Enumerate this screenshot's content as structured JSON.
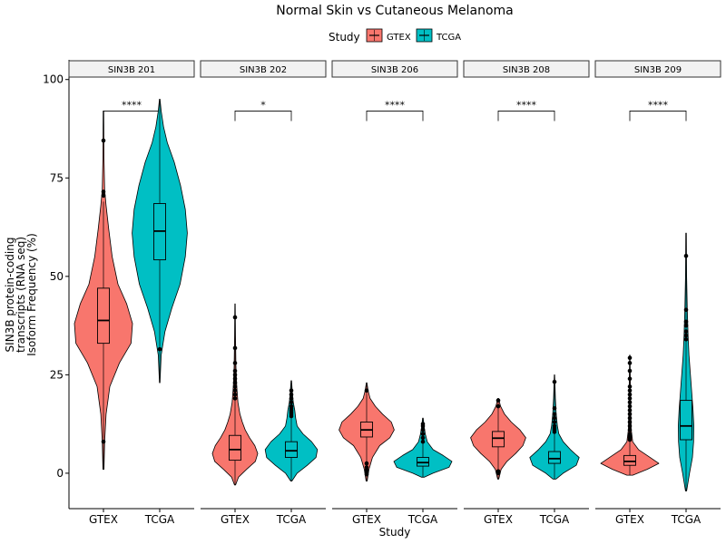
{
  "chart_data": {
    "type": "violin",
    "title": "Normal Skin vs Cutaneous Melanoma",
    "xlabel": "Study",
    "ylabel_lines": [
      "SIN3B protein-coding",
      "transcripts (RNA seq)",
      "Isoform Frequency (%)"
    ],
    "ylim": [
      -9,
      105
    ],
    "yticks": [
      0,
      25,
      50,
      75,
      100
    ],
    "legend": {
      "title": "Study",
      "position": "top",
      "entries": [
        {
          "name": "GTEX",
          "color": "#F8766D"
        },
        {
          "name": "TCGA",
          "color": "#00BFC4"
        }
      ]
    },
    "categories": [
      "GTEX",
      "TCGA"
    ],
    "panels": [
      {
        "label": "SIN3B 201",
        "significance": "****",
        "bracket_y": 92,
        "groups": [
          {
            "study": "GTEX",
            "min": 1,
            "q1": 33,
            "median": 38.8,
            "q3": 47,
            "max": 69,
            "wl": 12,
            "wh": 69,
            "outliers": [
              8,
              70.5,
              71.5,
              84.5
            ],
            "density": [
              [
                1,
                0.02
              ],
              [
                8,
                0.04
              ],
              [
                15,
                0.09
              ],
              [
                22,
                0.22
              ],
              [
                28,
                0.55
              ],
              [
                33,
                0.95
              ],
              [
                38,
                1.0
              ],
              [
                43,
                0.8
              ],
              [
                48,
                0.5
              ],
              [
                55,
                0.3
              ],
              [
                62,
                0.18
              ],
              [
                68,
                0.09
              ],
              [
                72,
                0.04
              ],
              [
                80,
                0.02
              ],
              [
                92,
                0.01
              ]
            ]
          },
          {
            "study": "TCGA",
            "min": 23,
            "q1": 54.2,
            "median": 61.5,
            "q3": 68.5,
            "max": 95,
            "wl": 33,
            "wh": 88,
            "outliers": [
              31.5
            ],
            "density": [
              [
                23,
                0.01
              ],
              [
                30,
                0.05
              ],
              [
                36,
                0.18
              ],
              [
                42,
                0.42
              ],
              [
                48,
                0.7
              ],
              [
                55,
                0.88
              ],
              [
                61,
                0.95
              ],
              [
                67,
                0.88
              ],
              [
                73,
                0.72
              ],
              [
                79,
                0.5
              ],
              [
                84,
                0.26
              ],
              [
                88,
                0.13
              ],
              [
                92,
                0.05
              ],
              [
                95,
                0.01
              ]
            ]
          }
        ]
      },
      {
        "label": "SIN3B 202",
        "significance": "*",
        "bracket_y": 92,
        "groups": [
          {
            "study": "GTEX",
            "min": -3,
            "q1": 3.3,
            "median": 6,
            "q3": 9.6,
            "max": 43,
            "wl": -1,
            "wh": 19,
            "outliers": [
              19,
              20,
              21,
              22,
              23,
              24,
              25,
              26,
              28,
              31.8,
              39.6
            ],
            "density": [
              [
                -3,
                0.02
              ],
              [
                -1,
                0.12
              ],
              [
                1,
                0.4
              ],
              [
                3,
                0.7
              ],
              [
                5,
                0.78
              ],
              [
                7,
                0.68
              ],
              [
                9,
                0.5
              ],
              [
                11,
                0.35
              ],
              [
                13,
                0.25
              ],
              [
                15,
                0.17
              ],
              [
                18,
                0.1
              ],
              [
                22,
                0.06
              ],
              [
                27,
                0.03
              ],
              [
                35,
                0.015
              ],
              [
                43,
                0.005
              ]
            ]
          },
          {
            "study": "TCGA",
            "min": -2,
            "q1": 4,
            "median": 5.7,
            "q3": 8,
            "max": 23.5,
            "wl": 0,
            "wh": 14,
            "outliers": [
              14.5,
              15,
              15.5,
              16,
              16.5,
              17,
              18,
              19,
              20,
              21
            ],
            "density": [
              [
                -2,
                0.02
              ],
              [
                0,
                0.2
              ],
              [
                2,
                0.55
              ],
              [
                4,
                0.85
              ],
              [
                6,
                0.9
              ],
              [
                8,
                0.7
              ],
              [
                10,
                0.4
              ],
              [
                12,
                0.2
              ],
              [
                14,
                0.15
              ],
              [
                16,
                0.12
              ],
              [
                18,
                0.07
              ],
              [
                20,
                0.04
              ],
              [
                23.5,
                0.01
              ]
            ]
          }
        ]
      },
      {
        "label": "SIN3B 206",
        "significance": "****",
        "bracket_y": 92,
        "groups": [
          {
            "study": "GTEX",
            "min": -2,
            "q1": 9.2,
            "median": 11,
            "q3": 13,
            "max": 23,
            "wl": 3.5,
            "wh": 17.5,
            "outliers": [
              -0.3,
              0.2,
              0.8,
              1.5,
              2.5,
              21
            ],
            "density": [
              [
                -2,
                0.02
              ],
              [
                1,
                0.08
              ],
              [
                4,
                0.2
              ],
              [
                7,
                0.45
              ],
              [
                9,
                0.8
              ],
              [
                11,
                0.95
              ],
              [
                13,
                0.85
              ],
              [
                15,
                0.55
              ],
              [
                17,
                0.3
              ],
              [
                19,
                0.12
              ],
              [
                21,
                0.05
              ],
              [
                23,
                0.01
              ]
            ]
          },
          {
            "study": "TCGA",
            "min": -1,
            "q1": 1.8,
            "median": 2.7,
            "q3": 4,
            "max": 14,
            "wl": -0.5,
            "wh": 7.5,
            "outliers": [
              8,
              9,
              10,
              11,
              12,
              12.5
            ],
            "density": [
              [
                -1,
                0.05
              ],
              [
                0,
                0.35
              ],
              [
                1.5,
                0.9
              ],
              [
                3,
                1.0
              ],
              [
                4.5,
                0.7
              ],
              [
                6,
                0.35
              ],
              [
                8,
                0.15
              ],
              [
                10,
                0.08
              ],
              [
                12,
                0.04
              ],
              [
                14,
                0.01
              ]
            ]
          }
        ]
      },
      {
        "label": "SIN3B 208",
        "significance": "****",
        "bracket_y": 92,
        "groups": [
          {
            "study": "GTEX",
            "min": -1.5,
            "q1": 6.7,
            "median": 8.9,
            "q3": 10.6,
            "max": 19,
            "wl": 1,
            "wh": 16,
            "outliers": [
              0,
              0.5,
              17,
              18.5
            ],
            "density": [
              [
                -1.5,
                0.02
              ],
              [
                1,
                0.1
              ],
              [
                3,
                0.3
              ],
              [
                5,
                0.6
              ],
              [
                7,
                0.85
              ],
              [
                9,
                0.95
              ],
              [
                11,
                0.75
              ],
              [
                13,
                0.45
              ],
              [
                15,
                0.22
              ],
              [
                17,
                0.08
              ],
              [
                19,
                0.01
              ]
            ]
          },
          {
            "study": "TCGA",
            "min": -1.5,
            "q1": 2.5,
            "median": 3.7,
            "q3": 5.5,
            "max": 25,
            "wl": 0,
            "wh": 10,
            "outliers": [
              10.5,
              11,
              11.5,
              12,
              13,
              14,
              15,
              16.5,
              23.2
            ],
            "density": [
              [
                -1.5,
                0.05
              ],
              [
                0,
                0.3
              ],
              [
                2,
                0.75
              ],
              [
                4,
                0.85
              ],
              [
                6,
                0.55
              ],
              [
                8,
                0.3
              ],
              [
                10,
                0.15
              ],
              [
                12,
                0.1
              ],
              [
                15,
                0.06
              ],
              [
                19,
                0.03
              ],
              [
                23,
                0.015
              ],
              [
                25,
                0.005
              ]
            ]
          }
        ]
      },
      {
        "label": "SIN3B 209",
        "significance": "****",
        "bracket_y": 92,
        "groups": [
          {
            "study": "GTEX",
            "min": -0.5,
            "q1": 2,
            "median": 3,
            "q3": 4.5,
            "max": 30,
            "wl": 0,
            "wh": 8,
            "outliers": [
              8.5,
              9,
              9.5,
              10,
              11,
              12,
              13,
              14,
              15,
              16,
              17,
              18,
              19,
              20,
              21,
              22,
              24,
              26,
              28,
              29.3
            ],
            "density": [
              [
                -0.5,
                0.1
              ],
              [
                1,
                0.6
              ],
              [
                2.5,
                1.0
              ],
              [
                4,
                0.7
              ],
              [
                6,
                0.3
              ],
              [
                8,
                0.1
              ],
              [
                11,
                0.05
              ],
              [
                15,
                0.035
              ],
              [
                20,
                0.025
              ],
              [
                25,
                0.015
              ],
              [
                30,
                0.005
              ]
            ]
          },
          {
            "study": "TCGA",
            "min": -4.5,
            "q1": 8.5,
            "median": 12,
            "q3": 18.5,
            "max": 61,
            "wl": -4,
            "wh": 33,
            "outliers": [
              34,
              35,
              36,
              37.5,
              38.5,
              41.5,
              55.2
            ],
            "density": [
              [
                -4.5,
                0.02
              ],
              [
                0,
                0.12
              ],
              [
                4,
                0.22
              ],
              [
                8,
                0.26
              ],
              [
                12,
                0.27
              ],
              [
                16,
                0.24
              ],
              [
                20,
                0.2
              ],
              [
                25,
                0.15
              ],
              [
                30,
                0.1
              ],
              [
                35,
                0.07
              ],
              [
                42,
                0.04
              ],
              [
                50,
                0.02
              ],
              [
                61,
                0.01
              ]
            ]
          }
        ]
      }
    ]
  }
}
